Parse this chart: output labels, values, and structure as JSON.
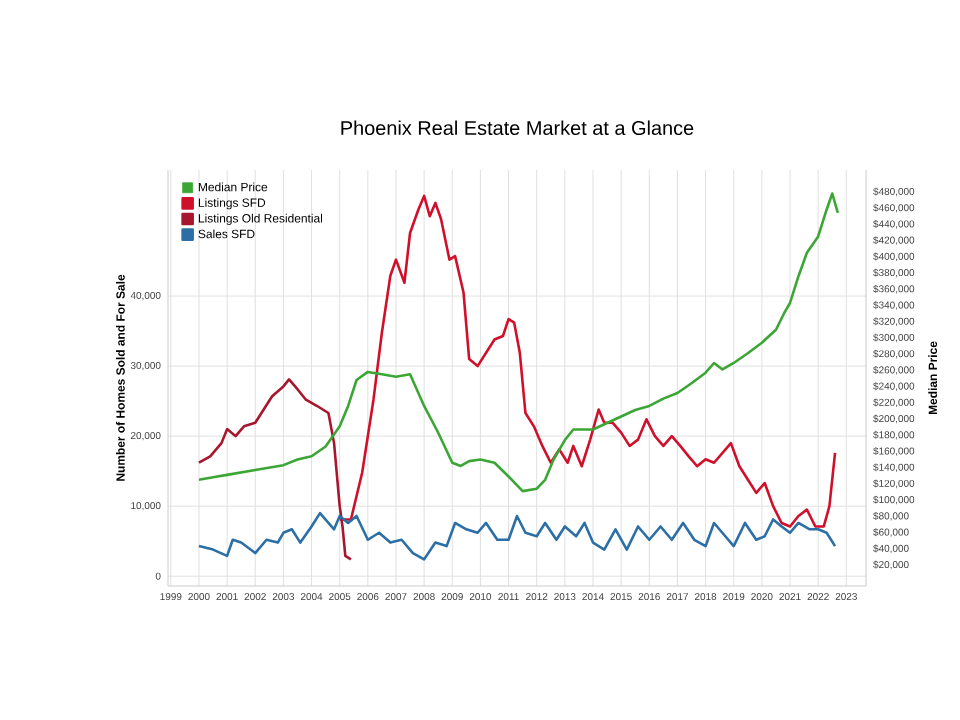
{
  "chart_data": {
    "type": "line",
    "title": "Phoenix Real Estate Market at a Glance",
    "ylabel": "Number of Homes Sold and For Sale",
    "y2label": "Median Price",
    "xlim": [
      1998.9,
      2023.7
    ],
    "xticks": [
      1999,
      2000,
      2001,
      2002,
      2003,
      2004,
      2005,
      2006,
      2007,
      2008,
      2009,
      2010,
      2011,
      2012,
      2013,
      2014,
      2015,
      2016,
      2017,
      2018,
      2019,
      2020,
      2021,
      2022,
      2023
    ],
    "ylim": [
      -1400,
      58000
    ],
    "yticks": [
      0,
      {
        "value": 10000,
        "label": "10,000"
      },
      {
        "value": 20000,
        "label": "20,000"
      },
      {
        "value": 30000,
        "label": "30,000"
      },
      {
        "value": 40000,
        "label": "40,000"
      }
    ],
    "y2lim": [
      -6000,
      507000
    ],
    "y2ticks": [
      {
        "value": 20000,
        "label": "$20,000"
      },
      {
        "value": 40000,
        "label": "$40,000"
      },
      {
        "value": 60000,
        "label": "$60,000"
      },
      {
        "value": 80000,
        "label": "$80,000"
      },
      {
        "value": 100000,
        "label": "$100,000"
      },
      {
        "value": 120000,
        "label": "$120,000"
      },
      {
        "value": 140000,
        "label": "$140,000"
      },
      {
        "value": 160000,
        "label": "$160,000"
      },
      {
        "value": 180000,
        "label": "$180,000"
      },
      {
        "value": 200000,
        "label": "$200,000"
      },
      {
        "value": 220000,
        "label": "$220,000"
      },
      {
        "value": 240000,
        "label": "$240,000"
      },
      {
        "value": 260000,
        "label": "$260,000"
      },
      {
        "value": 280000,
        "label": "$280,000"
      },
      {
        "value": 300000,
        "label": "$300,000"
      },
      {
        "value": 320000,
        "label": "$320,000"
      },
      {
        "value": 340000,
        "label": "$340,000"
      },
      {
        "value": 360000,
        "label": "$360,000"
      },
      {
        "value": 380000,
        "label": "$380,000"
      },
      {
        "value": 400000,
        "label": "$400,000"
      },
      {
        "value": 420000,
        "label": "$420,000"
      },
      {
        "value": 440000,
        "label": "$440,000"
      },
      {
        "value": 460000,
        "label": "$460,000"
      },
      {
        "value": 480000,
        "label": "$480,000"
      }
    ],
    "grid": true,
    "legend": "top left",
    "series": [
      {
        "name": "Median Price",
        "color": "#3ca635",
        "axis": "y2",
        "x": [
          2000.0,
          2000.5,
          2001,
          2002,
          2003,
          2003.5,
          2004,
          2004.5,
          2005,
          2005.3,
          2005.6,
          2006,
          2006.5,
          2007,
          2007.5,
          2008,
          2008.5,
          2009,
          2009.3,
          2009.6,
          2010,
          2010.5,
          2011,
          2011.5,
          2012,
          2012.3,
          2012.6,
          2013,
          2013.3,
          2014,
          2014.5,
          2015,
          2015.5,
          2016,
          2016.5,
          2017,
          2017.5,
          2018,
          2018.3,
          2018.6,
          2019,
          2019.5,
          2020,
          2020.5,
          2020.8,
          2021,
          2021.3,
          2021.6,
          2022,
          2022.3,
          2022.5,
          2022.7
        ],
        "values": [
          125000,
          128000,
          131000,
          137000,
          143000,
          150000,
          154000,
          166000,
          191000,
          216000,
          248000,
          258000,
          255000,
          252000,
          255000,
          216000,
          183000,
          146000,
          142000,
          148000,
          150000,
          146000,
          129000,
          111000,
          114000,
          125000,
          150000,
          174000,
          187000,
          187000,
          195000,
          203000,
          211000,
          216000,
          225000,
          232000,
          244000,
          257000,
          269000,
          261000,
          269000,
          281000,
          294000,
          310000,
          331000,
          343000,
          376000,
          405000,
          425000,
          458000,
          478000,
          454000
        ]
      },
      {
        "name": "Listings SFD",
        "color": "#d0102b",
        "x": [
          2005.0,
          2005.4,
          2005.8,
          2006.2,
          2006.5,
          2006.8,
          2007.0,
          2007.3,
          2007.5,
          2007.8,
          2008.0,
          2008.2,
          2008.4,
          2008.6,
          2008.9,
          2009.1,
          2009.4,
          2009.6,
          2009.9,
          2010.2,
          2010.5,
          2010.8,
          2011.0,
          2011.2,
          2011.4,
          2011.6,
          2011.9,
          2012.2,
          2012.5,
          2012.8,
          2013.1,
          2013.3,
          2013.6,
          2013.9,
          2014.2,
          2014.4,
          2014.7,
          2015.0,
          2015.3,
          2015.6,
          2015.9,
          2016.2,
          2016.5,
          2016.8,
          2017.1,
          2017.4,
          2017.7,
          2018.0,
          2018.3,
          2018.6,
          2018.9,
          2019.2,
          2019.5,
          2019.8,
          2020.1,
          2020.4,
          2020.7,
          2021.0,
          2021.3,
          2021.6,
          2021.9,
          2022.2,
          2022.4,
          2022.6
        ],
        "values": [
          8100,
          8100,
          14800,
          25200,
          34800,
          42900,
          45200,
          41900,
          49000,
          52400,
          54300,
          51400,
          53300,
          51000,
          45200,
          45700,
          40500,
          31000,
          30000,
          31900,
          33800,
          34300,
          36700,
          36200,
          31900,
          23300,
          21400,
          18600,
          16200,
          18100,
          16200,
          18600,
          15700,
          19500,
          23800,
          21900,
          21900,
          20500,
          18600,
          19500,
          22400,
          20000,
          18600,
          20000,
          18600,
          17100,
          15700,
          16700,
          16200,
          17600,
          19000,
          15700,
          13800,
          11900,
          13300,
          10000,
          7600,
          7100,
          8600,
          9500,
          7100,
          7100,
          10000,
          17600
        ]
      },
      {
        "name": "Listings Old Residential",
        "color": "#a8162e",
        "x": [
          2000.0,
          2000.4,
          2000.8,
          2001.0,
          2001.3,
          2001.6,
          2002.0,
          2002.3,
          2002.6,
          2003.0,
          2003.2,
          2003.5,
          2003.8,
          2004.2,
          2004.6,
          2004.8,
          2005.0,
          2005.1,
          2005.2,
          2005.4
        ],
        "values": [
          16200,
          17100,
          19000,
          21000,
          20000,
          21400,
          21900,
          23800,
          25700,
          27100,
          28100,
          26700,
          25200,
          24300,
          23300,
          19000,
          10000,
          7100,
          2900,
          2400
        ]
      },
      {
        "name": "Sales SFD",
        "color": "#2c6fa6",
        "x": [
          2000.0,
          2000.5,
          2001.0,
          2001.2,
          2001.5,
          2002.0,
          2002.4,
          2002.8,
          2003.0,
          2003.3,
          2003.6,
          2004.0,
          2004.3,
          2004.6,
          2004.8,
          2005.0,
          2005.3,
          2005.6,
          2006.0,
          2006.4,
          2006.8,
          2007.2,
          2007.6,
          2008.0,
          2008.4,
          2008.8,
          2009.1,
          2009.5,
          2009.9,
          2010.2,
          2010.6,
          2011.0,
          2011.3,
          2011.6,
          2012.0,
          2012.3,
          2012.7,
          2013.0,
          2013.4,
          2013.7,
          2014.0,
          2014.4,
          2014.8,
          2015.2,
          2015.6,
          2016.0,
          2016.4,
          2016.8,
          2017.2,
          2017.6,
          2018.0,
          2018.3,
          2018.7,
          2019.0,
          2019.4,
          2019.8,
          2020.1,
          2020.4,
          2020.7,
          2021.0,
          2021.3,
          2021.7,
          2022.0,
          2022.3,
          2022.6
        ],
        "values": [
          4300,
          3800,
          2900,
          5200,
          4800,
          3300,
          5200,
          4800,
          6200,
          6700,
          4800,
          7100,
          9000,
          7600,
          6700,
          8600,
          7600,
          8600,
          5200,
          6200,
          4800,
          5200,
          3300,
          2400,
          4800,
          4300,
          7600,
          6700,
          6200,
          7600,
          5200,
          5200,
          8600,
          6200,
          5700,
          7600,
          5200,
          7100,
          5700,
          7600,
          4800,
          3800,
          6700,
          3800,
          7100,
          5200,
          7100,
          5200,
          7600,
          5200,
          4300,
          7600,
          5700,
          4300,
          7600,
          5200,
          5700,
          8100,
          7100,
          6200,
          7600,
          6700,
          6700,
          6200,
          4300
        ]
      }
    ]
  }
}
